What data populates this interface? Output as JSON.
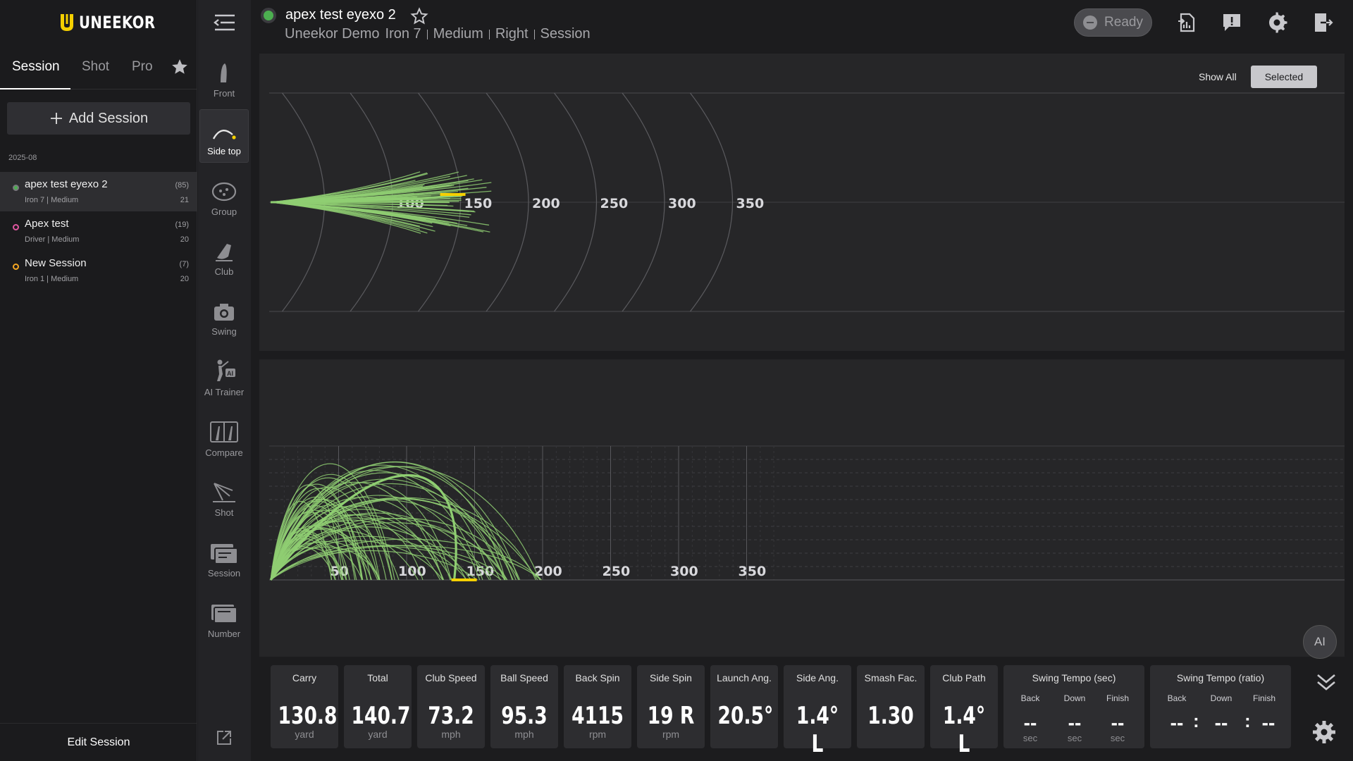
{
  "brand": {
    "name": "UNEEKOR",
    "accent": "#f5d000"
  },
  "left": {
    "tabs": [
      {
        "label": "Session"
      },
      {
        "label": "Shot"
      },
      {
        "label": "Pro"
      }
    ],
    "add_session_label": "Add Session",
    "date_group": "2025-08",
    "sessions": [
      {
        "name": "apex test eyexo 2",
        "sub": "Iron 7 | Medium",
        "count": "(85)",
        "num": "21",
        "dot": "#4caf50"
      },
      {
        "name": "Apex test",
        "sub": "Driver | Medium",
        "count": "(19)",
        "num": "20",
        "dot": "#e056a0"
      },
      {
        "name": "New Session",
        "sub": "Iron 1 | Medium",
        "count": "(7)",
        "num": "20",
        "dot": "#f5a623"
      }
    ],
    "edit_label": "Edit Session"
  },
  "rail": {
    "items": [
      {
        "label": "Front",
        "icon": "front-view-icon"
      },
      {
        "label": "Side top",
        "icon": "side-top-view-icon"
      },
      {
        "label": "Group",
        "icon": "group-icon"
      },
      {
        "label": "Club",
        "icon": "club-icon"
      },
      {
        "label": "Swing",
        "icon": "camera-icon"
      },
      {
        "label": "AI Trainer",
        "icon": "ai-trainer-icon"
      },
      {
        "label": "Compare",
        "icon": "compare-icon"
      },
      {
        "label": "Shot",
        "icon": "shot-icon"
      },
      {
        "label": "Session",
        "icon": "session-icon"
      },
      {
        "label": "Number",
        "icon": "number-icon"
      }
    ]
  },
  "header": {
    "title": "apex test eyexo 2",
    "crumbs": [
      "Uneekor Demo",
      "Iron 7",
      "Medium",
      "Right",
      "Session"
    ],
    "ready_label": "Ready"
  },
  "view_toggle": {
    "show_all": "Show All",
    "selected": "Selected"
  },
  "chart_data": [
    {
      "type": "scatter",
      "view": "top",
      "x_ticks": [
        "100",
        "150",
        "200",
        "250",
        "300",
        "350"
      ],
      "xlim": [
        0,
        370
      ],
      "series_color": "#8fce72",
      "selected_color": "#f5d000",
      "selected_shot_distance": 135
    },
    {
      "type": "line",
      "view": "side",
      "x_ticks": [
        "50",
        "100",
        "150",
        "200",
        "250",
        "300",
        "350"
      ],
      "xlim": [
        0,
        370
      ],
      "series_color": "#8fce72",
      "selected_color": "#f5d000",
      "selected_shot_distance": 135
    }
  ],
  "ai_label": "AI",
  "metrics": [
    {
      "label": "Carry",
      "value": "130.8",
      "unit": "yard"
    },
    {
      "label": "Total",
      "value": "140.7",
      "unit": "yard"
    },
    {
      "label": "Club Speed",
      "value": "73.2",
      "unit": "mph"
    },
    {
      "label": "Ball Speed",
      "value": "95.3",
      "unit": "mph"
    },
    {
      "label": "Back Spin",
      "value": "4115",
      "unit": "rpm"
    },
    {
      "label": "Side Spin",
      "value": "19 R",
      "unit": "rpm"
    },
    {
      "label": "Launch Ang.",
      "value": "20.5°",
      "unit": ""
    },
    {
      "label": "Side Ang.",
      "value": "1.4° L",
      "unit": ""
    },
    {
      "label": "Smash Fac.",
      "value": "1.30",
      "unit": ""
    },
    {
      "label": "Club Path",
      "value": "1.4° L",
      "unit": ""
    }
  ],
  "tempo_sec": {
    "label": "Swing Tempo (sec)",
    "cols": [
      {
        "label": "Back",
        "value": "--",
        "unit": "sec"
      },
      {
        "label": "Down",
        "value": "--",
        "unit": "sec"
      },
      {
        "label": "Finish",
        "value": "--",
        "unit": "sec"
      }
    ]
  },
  "tempo_ratio": {
    "label": "Swing Tempo (ratio)",
    "cols": [
      {
        "label": "Back",
        "value": "--"
      },
      {
        "label": "Down",
        "value": "--"
      },
      {
        "label": "Finish",
        "value": "--"
      }
    ],
    "separator": ":"
  }
}
